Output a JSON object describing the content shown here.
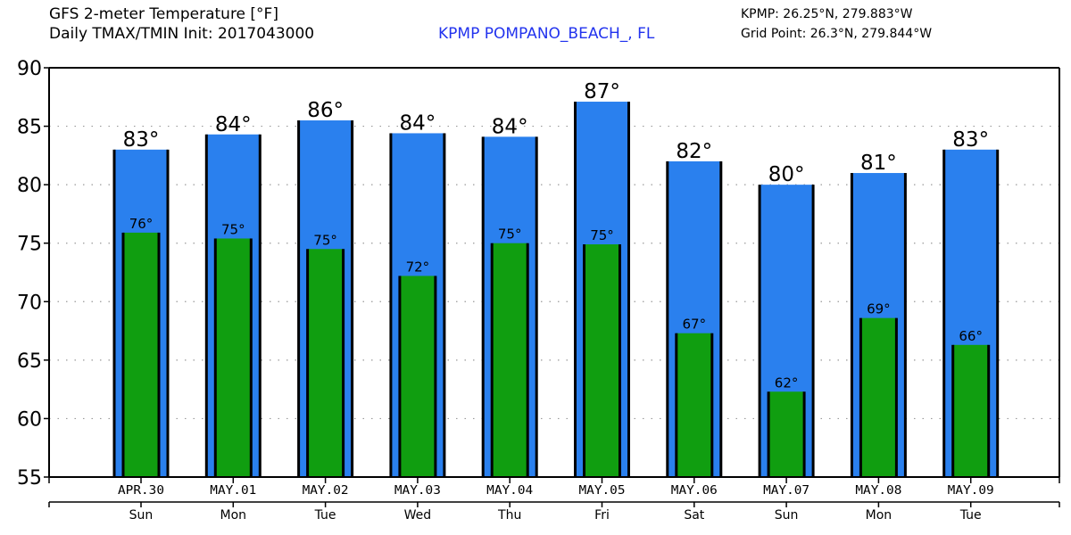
{
  "header": {
    "title_line1": "GFS 2-meter Temperature [°F]",
    "title_line2": "Daily TMAX/TMIN Init: 2017043000",
    "station": "KPMP POMPANO_BEACH_, FL",
    "station_coords": "KPMP: 26.25°N, 279.883°W",
    "grid_point": "Grid Point: 26.3°N, 279.844°W"
  },
  "colors": {
    "tmax_bar": "#2a80ee",
    "tmin_bar": "#109e10",
    "station_text": "#2233ee"
  },
  "chart_data": {
    "type": "bar",
    "title": "GFS 2-meter Temperature [°F] — Daily TMAX/TMIN",
    "xlabel": "",
    "ylabel": "",
    "ylim": [
      55,
      90
    ],
    "yticks": [
      55,
      60,
      65,
      70,
      75,
      80,
      85,
      90
    ],
    "grid": "horizontal dotted",
    "categories": [
      "APR.30",
      "MAY.01",
      "MAY.02",
      "MAY.03",
      "MAY.04",
      "MAY.05",
      "MAY.06",
      "MAY.07",
      "MAY.08",
      "MAY.09"
    ],
    "weekdays": [
      "Sun",
      "Mon",
      "Tue",
      "Wed",
      "Thu",
      "Fri",
      "Sat",
      "Sun",
      "Mon",
      "Tue"
    ],
    "series": [
      {
        "name": "TMAX",
        "values": [
          83.0,
          84.3,
          85.5,
          84.4,
          84.1,
          87.1,
          82.0,
          80.0,
          81.0,
          83.0
        ],
        "labels": [
          "83°",
          "84°",
          "86°",
          "84°",
          "84°",
          "87°",
          "82°",
          "80°",
          "81°",
          "83°"
        ]
      },
      {
        "name": "TMIN",
        "values": [
          75.9,
          75.4,
          74.5,
          72.2,
          75.0,
          74.9,
          67.3,
          62.3,
          68.6,
          66.3
        ],
        "labels": [
          "76°",
          "75°",
          "75°",
          "72°",
          "75°",
          "75°",
          "67°",
          "62°",
          "69°",
          "66°"
        ]
      }
    ]
  }
}
